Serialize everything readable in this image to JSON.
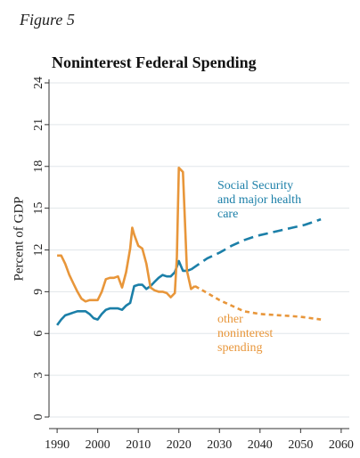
{
  "figure_label": "Figure 5",
  "chart_data": {
    "type": "line",
    "title": "Noninterest Federal Spending",
    "xlabel": "",
    "ylabel": "Percent of GDP",
    "xlim": [
      1988,
      2062
    ],
    "ylim": [
      0,
      24
    ],
    "x_ticks": [
      1990,
      2000,
      2010,
      2020,
      2030,
      2040,
      2050,
      2060
    ],
    "y_ticks": [
      0,
      3,
      6,
      9,
      12,
      15,
      18,
      21,
      24
    ],
    "grid": true,
    "colors": {
      "social_security": "#1b7fa8",
      "other": "#e8963a",
      "grid": "#e1e6ea",
      "axis": "#333333"
    },
    "series": [
      {
        "key": "social_security",
        "annotation": [
          "Social Security",
          "and major health",
          "care"
        ],
        "style": "solid",
        "x": [
          1990,
          1991,
          1992,
          1993,
          1994,
          1995,
          1996,
          1997,
          1998,
          1999,
          2000,
          2001,
          2002,
          2003,
          2004,
          2005,
          2006,
          2007,
          2008,
          2009,
          2010,
          2011,
          2012,
          2013,
          2014,
          2015,
          2016,
          2017,
          2018,
          2019,
          2020,
          2021,
          2022,
          2023
        ],
        "values": [
          6.6,
          7.0,
          7.3,
          7.4,
          7.5,
          7.6,
          7.6,
          7.6,
          7.4,
          7.1,
          7.0,
          7.4,
          7.7,
          7.8,
          7.8,
          7.8,
          7.7,
          8.0,
          8.2,
          9.4,
          9.5,
          9.5,
          9.2,
          9.4,
          9.7,
          10.0,
          10.2,
          10.1,
          10.1,
          10.4,
          11.2,
          10.5,
          10.5,
          10.6
        ]
      },
      {
        "key": "social_security_projection",
        "style": "dashed",
        "x": [
          2023,
          2025,
          2027,
          2030,
          2033,
          2036,
          2039,
          2042,
          2045,
          2048,
          2051,
          2054,
          2055
        ],
        "values": [
          10.6,
          11.0,
          11.4,
          11.8,
          12.3,
          12.7,
          13.0,
          13.2,
          13.4,
          13.6,
          13.8,
          14.1,
          14.2
        ]
      },
      {
        "key": "other",
        "annotation": [
          "other",
          "noninterest",
          "spending"
        ],
        "style": "solid",
        "x": [
          1990,
          1991,
          1992,
          1993,
          1994,
          1995,
          1996,
          1997,
          1998,
          1999,
          2000,
          2001,
          2002,
          2003,
          2004,
          2005,
          2006,
          2007,
          2008,
          2008.5,
          2009,
          2010,
          2011,
          2012,
          2013,
          2014,
          2015,
          2016,
          2017,
          2018,
          2019,
          2019.5,
          2020,
          2021,
          2022,
          2023,
          2024
        ],
        "values": [
          11.6,
          11.6,
          11.0,
          10.2,
          9.6,
          9.0,
          8.5,
          8.3,
          8.4,
          8.4,
          8.4,
          9.0,
          9.9,
          10.0,
          10.0,
          10.1,
          9.3,
          10.4,
          12.1,
          13.6,
          13.1,
          12.3,
          12.1,
          11.0,
          9.3,
          9.1,
          9.0,
          9.0,
          8.9,
          8.6,
          8.9,
          11.5,
          17.9,
          17.6,
          10.5,
          9.2,
          9.4
        ]
      },
      {
        "key": "other_projection",
        "style": "dashed",
        "x": [
          2024,
          2027,
          2030,
          2033,
          2036,
          2040,
          2045,
          2050,
          2055
        ],
        "values": [
          9.4,
          8.9,
          8.4,
          8.0,
          7.6,
          7.4,
          7.3,
          7.2,
          7.0
        ]
      }
    ]
  }
}
